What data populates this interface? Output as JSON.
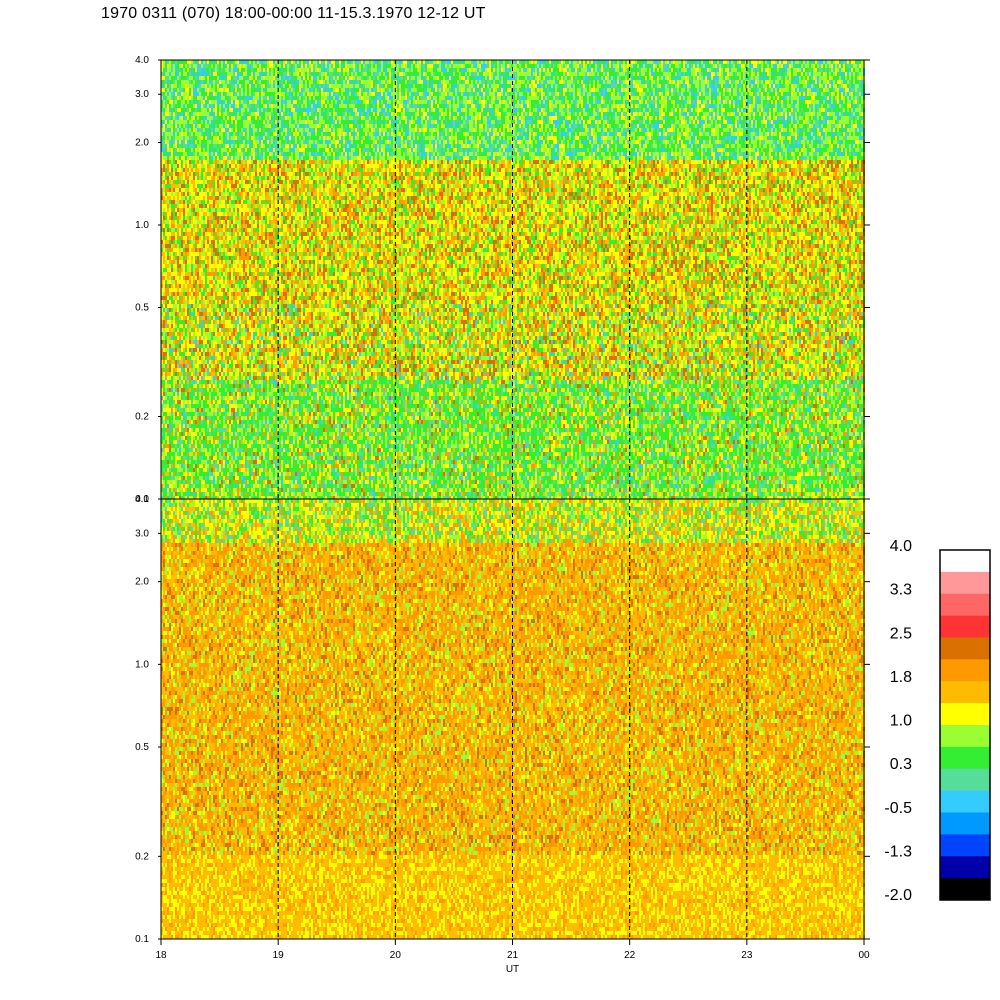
{
  "title": "1970 0311 (070) 18:00-00:00 11-15.3.1970  12-12 UT",
  "chart_data": {
    "type": "heatmap",
    "xlabel": "UT",
    "x_ticks": [
      "18",
      "19",
      "20",
      "21",
      "22",
      "23",
      "00"
    ],
    "x_range": [
      18,
      24
    ],
    "y_scale": "log",
    "y_ticks": [
      "0.1",
      "0.2",
      "0.5",
      "1.0",
      "2.0",
      "3.0",
      "4.0"
    ],
    "y_tick_values": [
      0.1,
      0.2,
      0.5,
      1.0,
      2.0,
      3.0,
      4.0
    ],
    "y_range": [
      0.1,
      4.0
    ],
    "vertical_dashed_lines_at": [
      19,
      20,
      21,
      22,
      23
    ],
    "panels": [
      {
        "id": "upper",
        "note": "mostly green/yellow spectrogram with orange patches near 1-2"
      },
      {
        "id": "lower",
        "note": "mostly orange/yellow spectrogram"
      }
    ],
    "colorbar": {
      "tick_labels": [
        "4.0",
        "3.3",
        "2.5",
        "1.8",
        "1.0",
        "0.3",
        "-0.5",
        "-1.3",
        "-2.0"
      ],
      "range": [
        -2.0,
        4.0
      ],
      "colors_top_to_bottom": [
        "#ffffff",
        "#ff9999",
        "#ff6666",
        "#ff3333",
        "#d97000",
        "#ff9900",
        "#ffbb00",
        "#ffff00",
        "#99ff33",
        "#33ee33",
        "#55dd99",
        "#33ccff",
        "#0099ff",
        "#0044ff",
        "#0000aa",
        "#000000"
      ]
    }
  }
}
